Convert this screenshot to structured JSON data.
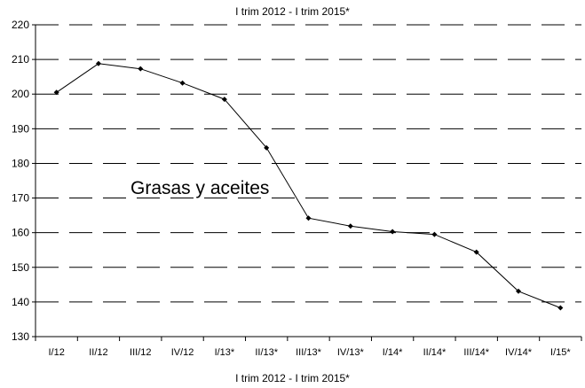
{
  "chart_data": {
    "type": "line",
    "title": "I trim 2012 - I trim 2015*",
    "xlabel": "I trim 2012 - I trim 2015*",
    "ylabel": "",
    "annotation": "Grasas y aceites",
    "categories": [
      "I/12",
      "II/12",
      "III/12",
      "IV/12",
      "I/13*",
      "II/13*",
      "III/13*",
      "IV/13*",
      "I/14*",
      "II/14*",
      "III/14*",
      "IV/14*",
      "I/15*"
    ],
    "series": [
      {
        "values": [
          200.5,
          208.8,
          207.3,
          203.2,
          198.5,
          184.5,
          164.2,
          161.9,
          160.3,
          159.5,
          154.4,
          143.1,
          138.3
        ]
      }
    ],
    "ylim": [
      130,
      220
    ],
    "yticks": [
      130,
      140,
      150,
      160,
      170,
      180,
      190,
      200,
      210,
      220
    ],
    "grid": true,
    "grid_style": "dashed",
    "line_color": "#000000",
    "marker": "diamond"
  }
}
